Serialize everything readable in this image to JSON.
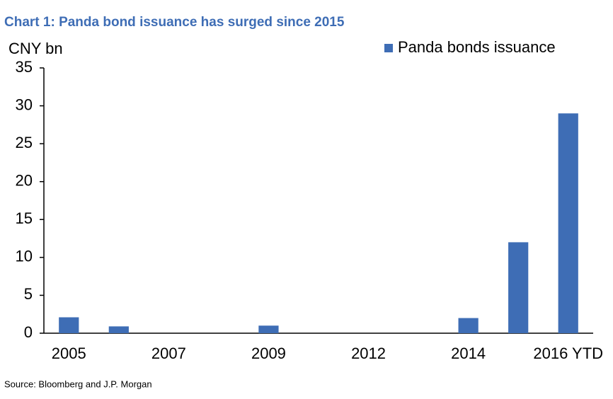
{
  "chart_data": {
    "type": "bar",
    "title": "Chart 1: Panda bond issuance has surged since 2015",
    "y_label": "CNY bn",
    "categories": [
      "2005",
      null,
      "2007",
      null,
      "2009",
      null,
      "2012",
      null,
      "2014",
      null,
      "2016 YTD"
    ],
    "series": [
      {
        "name": "Panda bonds issuance",
        "color": "#3e6db5",
        "values": [
          2.1,
          0.9,
          0,
          0,
          1.0,
          0,
          0,
          0,
          2.0,
          12,
          29
        ]
      }
    ],
    "ylim": [
      0,
      35
    ],
    "yticks": [
      0,
      5,
      10,
      15,
      20,
      25,
      30,
      35
    ],
    "grid": false,
    "legend": "top-right",
    "source": "Source: Bloomberg and J.P. Morgan"
  }
}
